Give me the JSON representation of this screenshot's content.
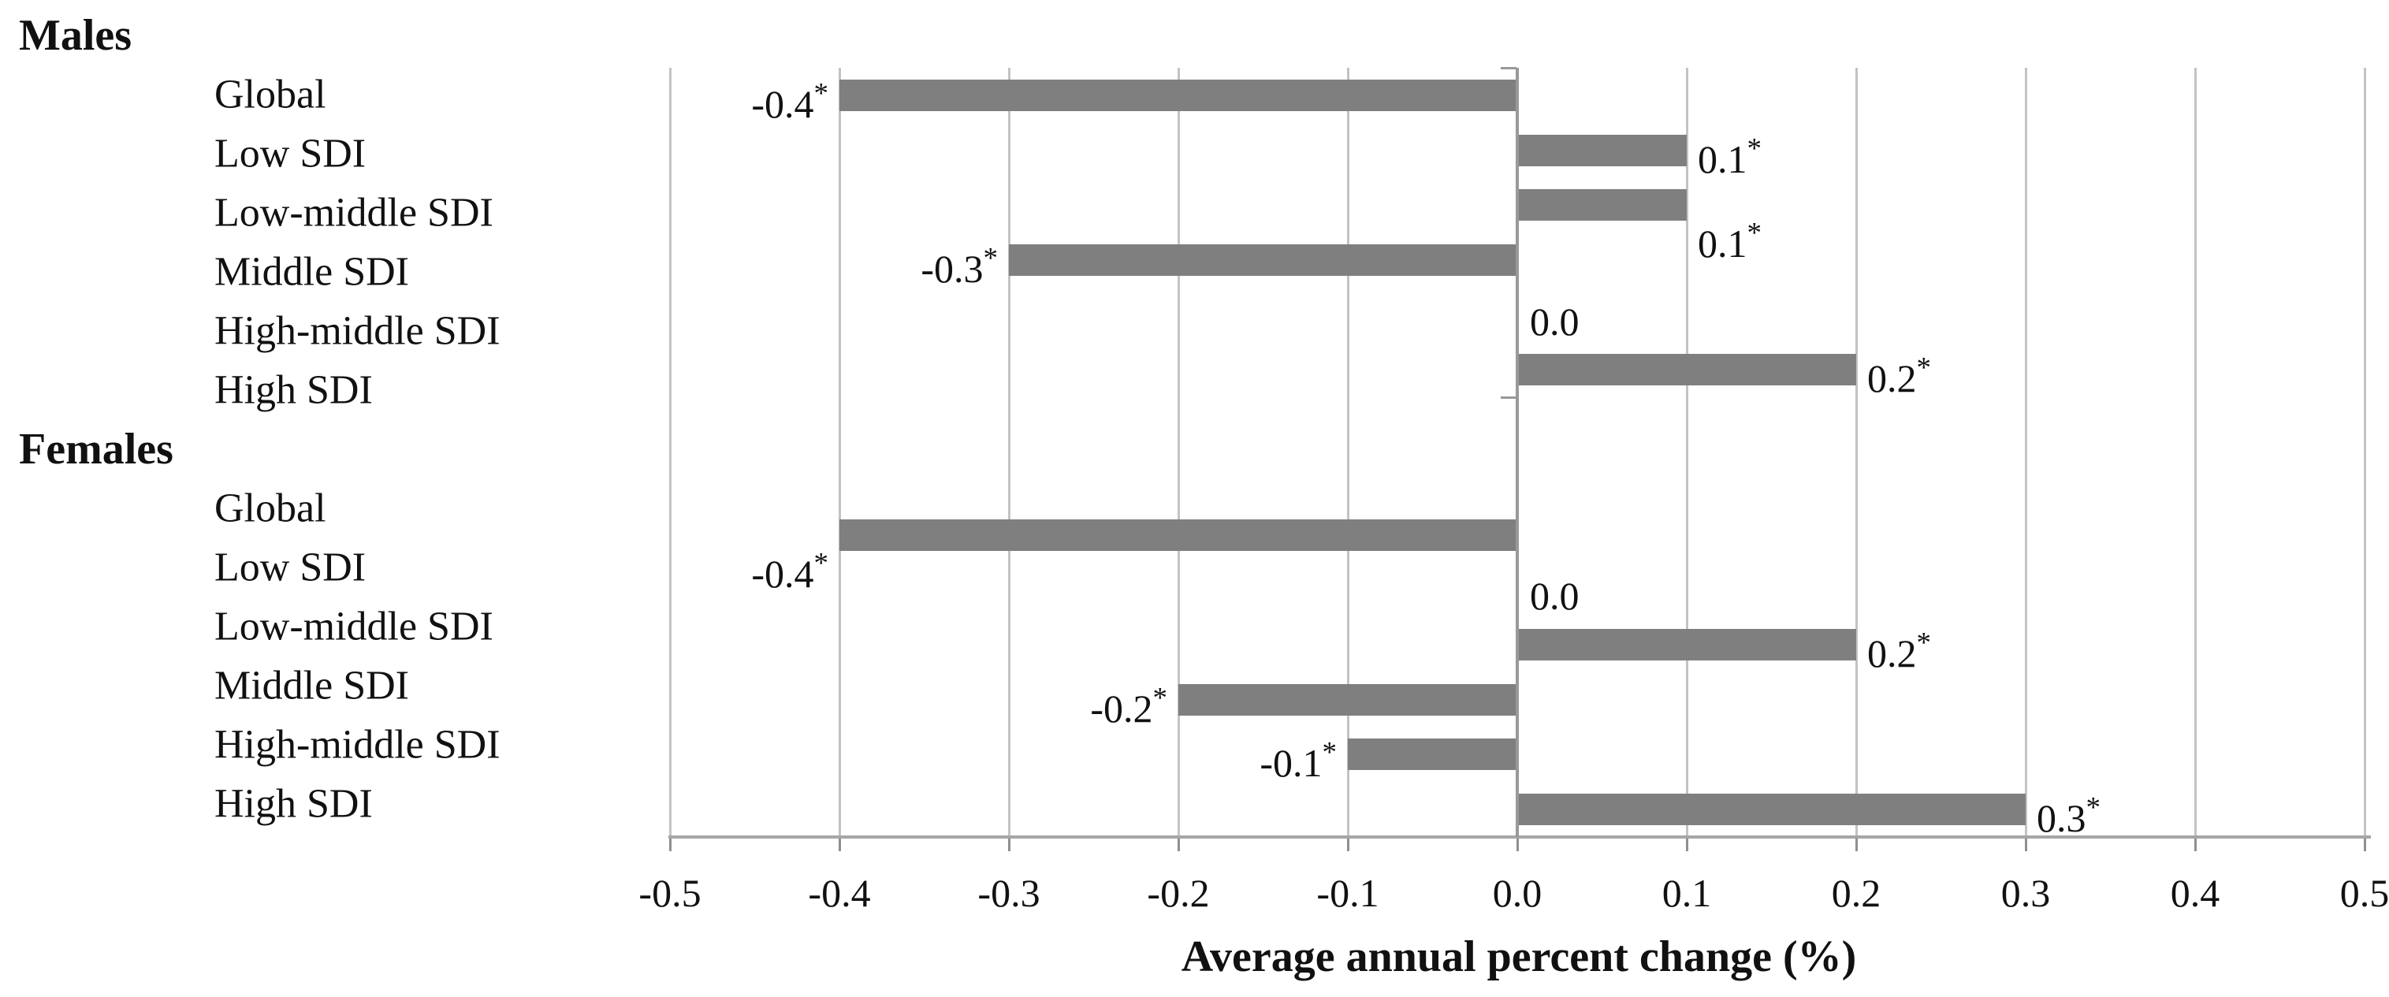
{
  "chart_data": {
    "type": "bar",
    "orientation": "horizontal",
    "xlabel": "Average annual percent change (%)",
    "xlim": [
      -0.5,
      0.5
    ],
    "x_ticks": [
      "-0.5",
      "-0.4",
      "-0.3",
      "-0.2",
      "-0.1",
      "0.0",
      "0.1",
      "0.2",
      "0.3",
      "0.4",
      "0.5"
    ],
    "gridlines": true,
    "legend": "none",
    "groups": [
      {
        "header": "Males",
        "rows": [
          {
            "category": "Global",
            "value": -0.4,
            "label": "-0.4",
            "star": "*",
            "label_below": false
          },
          {
            "category": "Low SDI",
            "value": 0.1,
            "label": "0.1",
            "star": "*",
            "label_below": false
          },
          {
            "category": "Low-middle SDI",
            "value": 0.1,
            "label": "0.1",
            "star": "*",
            "label_below": true
          },
          {
            "category": "Middle SDI",
            "value": -0.3,
            "label": "-0.3",
            "star": "*",
            "label_below": false
          },
          {
            "category": "High-middle SDI",
            "value": 0.0,
            "label": "0.0",
            "star": "",
            "label_below": false
          },
          {
            "category": "High SDI",
            "value": 0.2,
            "label": "0.2",
            "star": "*",
            "label_below": false
          }
        ]
      },
      {
        "header": "Females",
        "rows": [
          {
            "category": "Global",
            "value": -0.4,
            "label": "-0.4",
            "star": "*",
            "label_below": true
          },
          {
            "category": "Low SDI",
            "value": 0.0,
            "label": "0.0",
            "star": "",
            "label_below": false
          },
          {
            "category": "Low-middle SDI",
            "value": 0.2,
            "label": "0.2",
            "star": "*",
            "label_below": false
          },
          {
            "category": "Middle SDI",
            "value": -0.2,
            "label": "-0.2",
            "star": "*",
            "label_below": false
          },
          {
            "category": "High-middle SDI",
            "value": -0.1,
            "label": "-0.1",
            "star": "*",
            "label_below": false
          },
          {
            "category": "High SDI",
            "value": 0.3,
            "label": "0.3",
            "star": "*",
            "label_below": false
          }
        ]
      }
    ]
  },
  "colors": {
    "bar": "#7f7f7f",
    "gridline": "#c3c3c3",
    "zero_axis": "#999999",
    "axis_line": "#a6a6a6",
    "axis_tick": "#8f8f8f",
    "text": "#111111"
  }
}
